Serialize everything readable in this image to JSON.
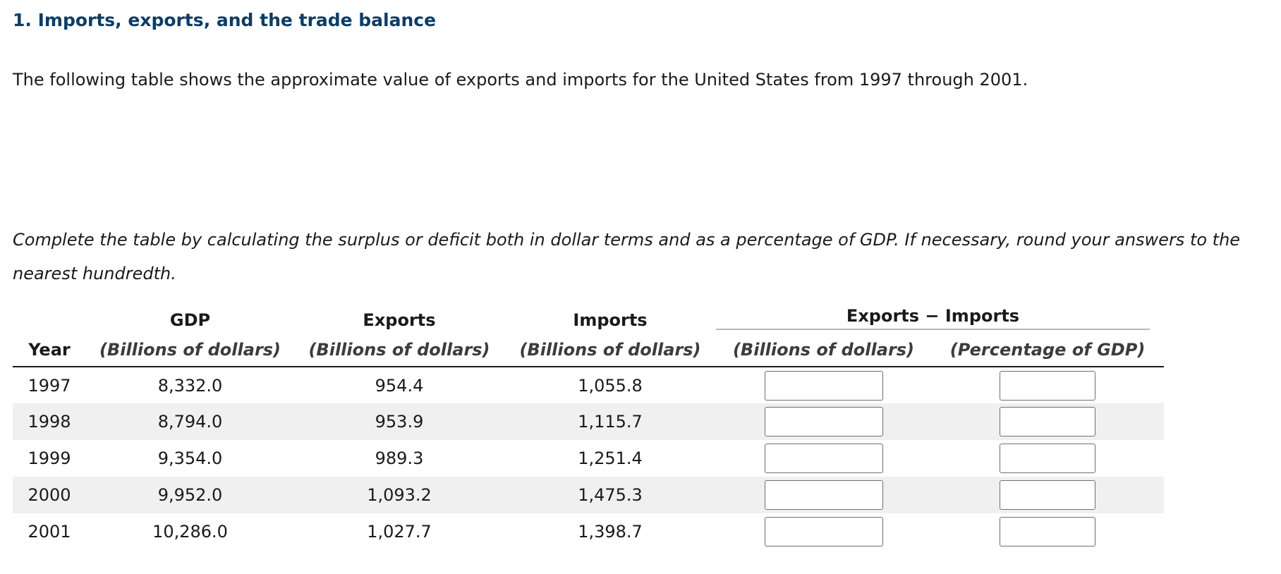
{
  "heading": "1. Imports, exports, and the trade balance",
  "intro": "The following table shows the approximate value of exports and imports for the United States from 1997 through 2001.",
  "instructions": "Complete the table by calculating the surplus or deficit both in dollar terms and as a percentage of GDP. If necessary, round your answers to the nearest hundredth.",
  "table": {
    "headers": {
      "year": "Year",
      "gdp": "GDP",
      "gdp_unit": "(Billions of dollars)",
      "exports": "Exports",
      "exports_unit": "(Billions of dollars)",
      "imports": "Imports",
      "imports_unit": "(Billions of dollars)",
      "difference": "Exports − Imports",
      "difference_dollars_unit": "(Billions of dollars)",
      "difference_percent_unit": "(Percentage of GDP)"
    },
    "rows": [
      {
        "year": "1997",
        "gdp": "8,332.0",
        "exports": "954.4",
        "imports": "1,055.8",
        "diff_dollars": "",
        "diff_percent": ""
      },
      {
        "year": "1998",
        "gdp": "8,794.0",
        "exports": "953.9",
        "imports": "1,115.7",
        "diff_dollars": "",
        "diff_percent": ""
      },
      {
        "year": "1999",
        "gdp": "9,354.0",
        "exports": "989.3",
        "imports": "1,251.4",
        "diff_dollars": "",
        "diff_percent": ""
      },
      {
        "year": "2000",
        "gdp": "9,952.0",
        "exports": "1,093.2",
        "imports": "1,475.3",
        "diff_dollars": "",
        "diff_percent": ""
      },
      {
        "year": "2001",
        "gdp": "10,286.0",
        "exports": "1,027.7",
        "imports": "1,398.7",
        "diff_dollars": "",
        "diff_percent": ""
      }
    ]
  }
}
